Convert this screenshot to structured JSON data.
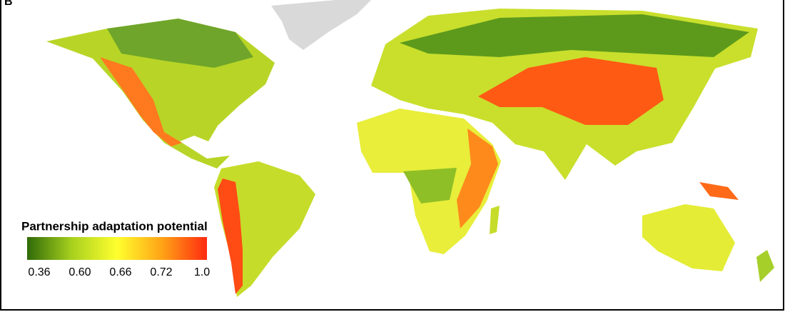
{
  "panel_label": "B",
  "legend": {
    "title": "Partnership adaptation potential",
    "ticks": [
      0.36,
      {
        "value": 0.6,
        "label": "0.60"
      },
      0.66,
      0.72,
      {
        "value": 1,
        "label": "1.0"
      }
    ],
    "colors": [
      "#2f6a08",
      "#a8d11e",
      "#ffff2e",
      "#ffa316",
      "#ff2a10"
    ]
  }
}
